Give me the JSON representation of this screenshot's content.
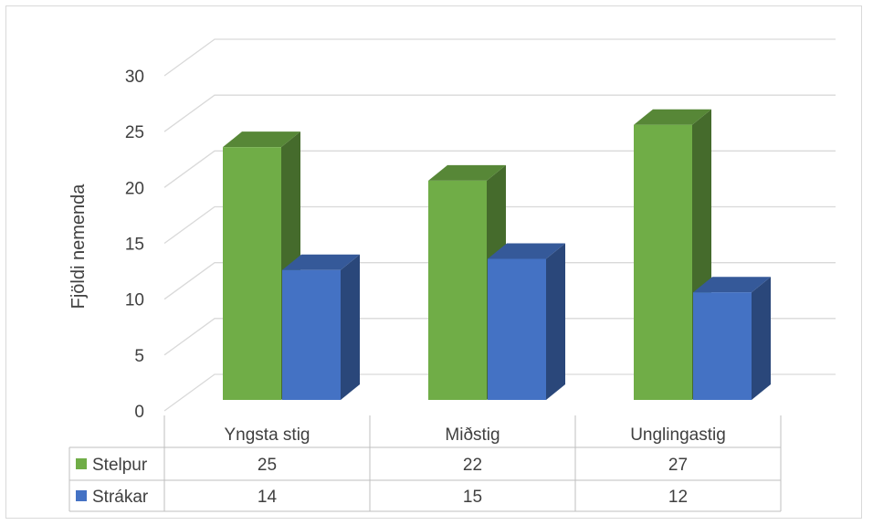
{
  "chart_data": {
    "type": "bar",
    "style": "3d-clustered-column-with-data-table",
    "categories": [
      "Yngsta stig",
      "Miðstig",
      "Unglingastig"
    ],
    "series": [
      {
        "name": "Stelpur",
        "values": [
          25,
          22,
          27
        ],
        "color": "#70ad47"
      },
      {
        "name": "Strákar",
        "values": [
          14,
          15,
          12
        ],
        "color": "#4472c4"
      }
    ],
    "title": "",
    "xlabel": "",
    "ylabel": "Fjöldi nemenda",
    "ylim": [
      0,
      30
    ],
    "yticks": [
      "0",
      "5",
      "10",
      "15",
      "20",
      "25",
      "30"
    ],
    "grid": true,
    "legend": "data-table"
  }
}
